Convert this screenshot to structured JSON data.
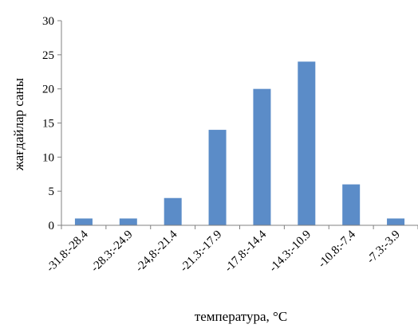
{
  "chart_data": {
    "type": "bar",
    "categories": [
      "-31.8:-28.4",
      "-28.3:-24.9",
      "-24,8:-21.4",
      "-21.3:-17.9",
      "-17.8:-14.4",
      "-14.3:-10.9",
      "-10.8:-7.4",
      "-7.3:-3.9"
    ],
    "values": [
      1,
      1,
      4,
      14,
      20,
      24,
      6,
      1
    ],
    "title": "",
    "xlabel": "температура, °C",
    "ylabel": "жағдайлар саны",
    "ylim": [
      0,
      30
    ],
    "yticks": [
      0,
      5,
      10,
      15,
      20,
      25,
      30
    ],
    "grid": false,
    "legend": "none",
    "colors": {
      "bar": "#5b8cc8",
      "axis": "#808080",
      "text": "#000000"
    }
  }
}
